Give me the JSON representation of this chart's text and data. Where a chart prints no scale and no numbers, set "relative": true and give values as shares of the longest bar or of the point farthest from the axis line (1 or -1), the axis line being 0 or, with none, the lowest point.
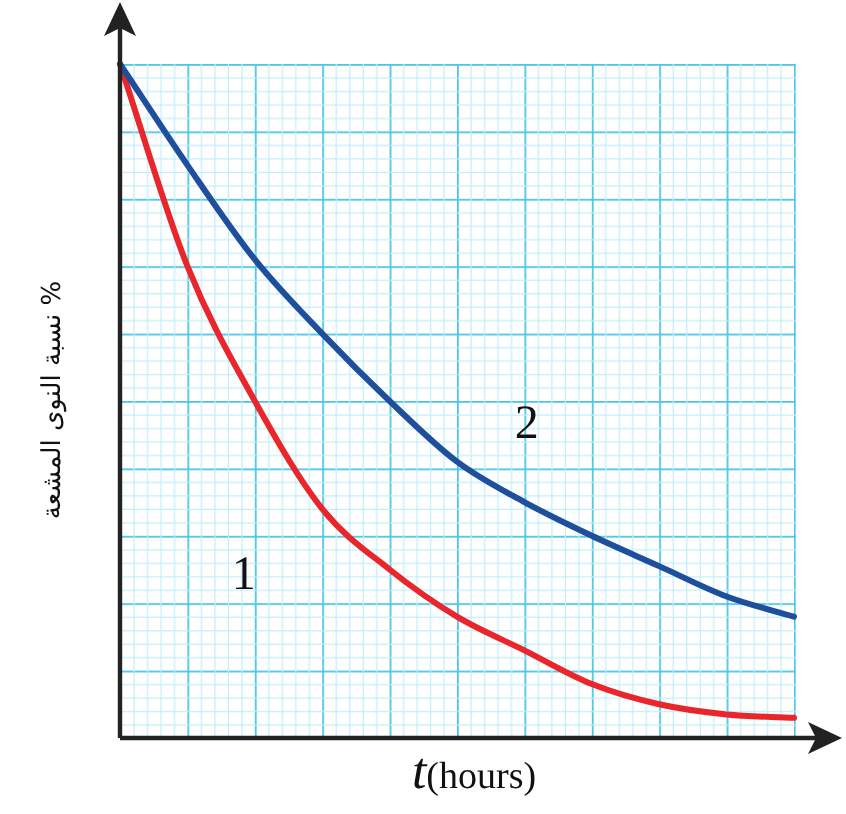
{
  "chart_data": {
    "type": "line",
    "relative": true,
    "marker": "none",
    "line_style": "solid",
    "xlabel": "*t*(hours)",
    "ylabel": "نسبة النوى المشعة %",
    "categories": [
      null,
      null,
      null,
      null,
      null,
      null,
      null,
      null,
      null,
      null,
      null
    ],
    "series": [
      {
        "name": "1",
        "color": "#e8262b",
        "values": [
          1.0,
          0.7,
          0.5,
          0.34,
          0.25,
          0.18,
          0.13,
          0.08,
          0.05,
          0.035,
          0.03
        ]
      },
      {
        "name": "2",
        "color": "#1f4e9c",
        "values": [
          1.0,
          0.85,
          0.71,
          0.6,
          0.5,
          0.41,
          0.35,
          0.3,
          0.255,
          0.21,
          0.18
        ]
      }
    ]
  }
}
